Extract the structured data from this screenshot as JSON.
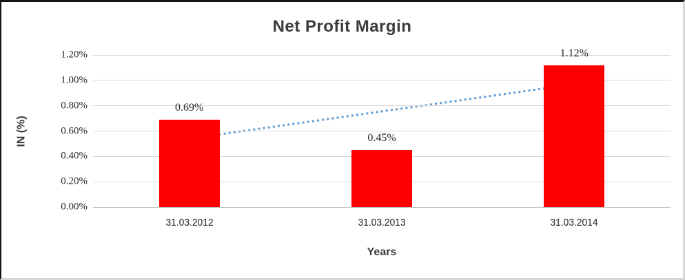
{
  "colors": {
    "bar_fill": "#ff0000",
    "trendline": "#5b9bd5",
    "gridline": "#d9d9d9",
    "axis_line": "#bfbfbf",
    "text_dark": "#3b3b3b",
    "tick_text": "#262626"
  },
  "chart_data": {
    "type": "bar",
    "title": "Net Profit Margin",
    "xlabel": "Years",
    "ylabel": "IN (%)",
    "categories": [
      "31.03.2012",
      "31.03.2013",
      "31.03.2014"
    ],
    "values": [
      0.69,
      0.45,
      1.12
    ],
    "data_labels": [
      "0.69%",
      "0.45%",
      "1.12%"
    ],
    "yticks": [
      "0.00%",
      "0.20%",
      "0.40%",
      "0.60%",
      "0.80%",
      "1.00%",
      "1.20%"
    ],
    "ylim": [
      0,
      1.2
    ],
    "grid": true,
    "legend_position": "none",
    "trendline": {
      "style": "dotted",
      "start_value": 0.54,
      "end_value": 0.97
    }
  }
}
